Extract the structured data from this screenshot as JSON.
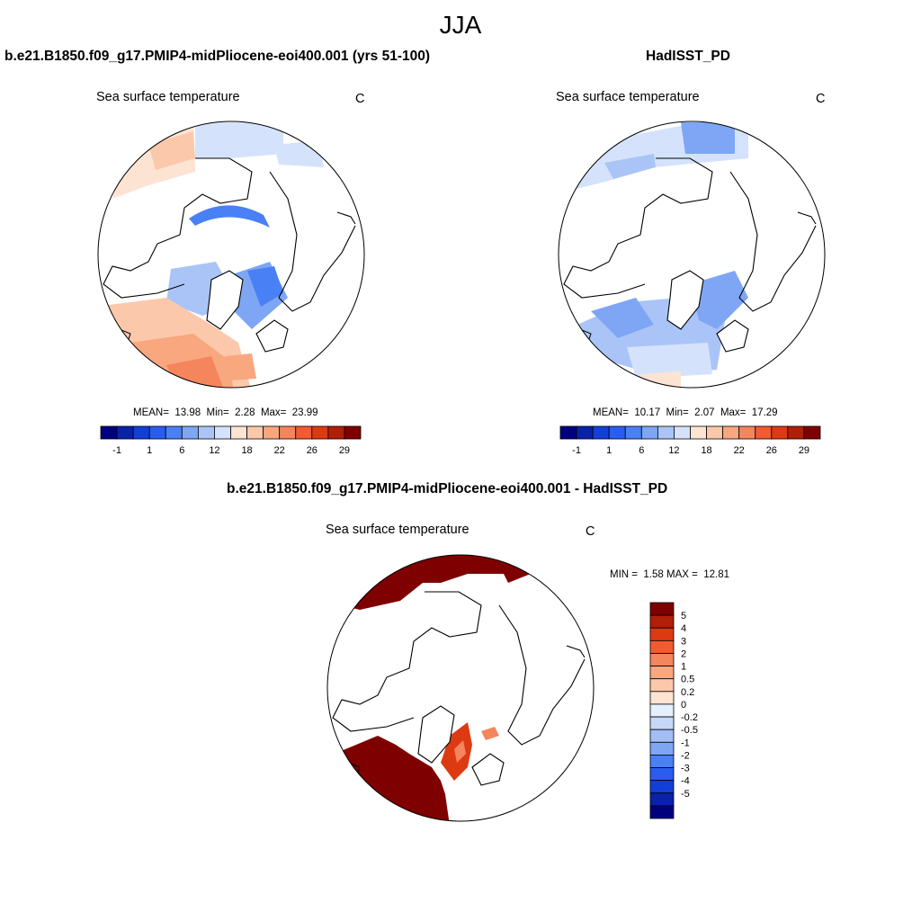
{
  "title": "JJA",
  "panels": [
    {
      "id": "model",
      "title": "b.e21.B1850.f09_g17.PMIP4-midPliocene-eoi400.001 (yrs 51-100)",
      "variable": "Sea surface temperature",
      "units": "C",
      "stats": {
        "mean_label": "MEAN=",
        "mean": "13.98",
        "min_label": "Min=",
        "min": "2.28",
        "max_label": "Max=",
        "max": "23.99"
      }
    },
    {
      "id": "obs",
      "title": "HadISST_PD",
      "variable": "Sea surface temperature",
      "units": "C",
      "stats": {
        "mean_label": "MEAN=",
        "mean": "10.17",
        "min_label": "Min=",
        "min": "2.07",
        "max_label": "Max=",
        "max": "17.29"
      }
    },
    {
      "id": "diff",
      "title": "b.e21.B1850.f09_g17.PMIP4-midPliocene-eoi400.001 - HadISST_PD",
      "variable": "Sea surface temperature",
      "units": "C",
      "stats": {
        "min_label": "MIN =",
        "min": "1.58",
        "max_label": "MAX =",
        "max": "12.81"
      }
    }
  ],
  "colorbars": {
    "horizontal": {
      "colors": [
        "#00007f",
        "#0a22a8",
        "#1240d6",
        "#2a5cf0",
        "#4a80f5",
        "#7ea6f5",
        "#aac4f7",
        "#d4e3fb",
        "#fde4d2",
        "#fcc8ab",
        "#f8a77f",
        "#f5855c",
        "#f25a30",
        "#dd3a14",
        "#b01f07",
        "#7f0000"
      ],
      "labels": [
        "-1",
        "1",
        "6",
        "12",
        "18",
        "22",
        "26",
        "29"
      ]
    },
    "vertical": {
      "colors": [
        "#7f0000",
        "#b01f07",
        "#dd3a14",
        "#f25a30",
        "#f5855c",
        "#f8a77f",
        "#fcc8ab",
        "#fde4d2",
        "#e6effc",
        "#c6d8f8",
        "#a3bdf5",
        "#7ea6f5",
        "#4a80f5",
        "#2a5cf0",
        "#1240d6",
        "#0a22a8",
        "#00007f"
      ],
      "labels": [
        "5",
        "4",
        "3",
        "2",
        "1",
        "0.5",
        "0.2",
        "0",
        "-0.2",
        "-0.5",
        "-1",
        "-2",
        "-3",
        "-4",
        "-5"
      ]
    }
  }
}
